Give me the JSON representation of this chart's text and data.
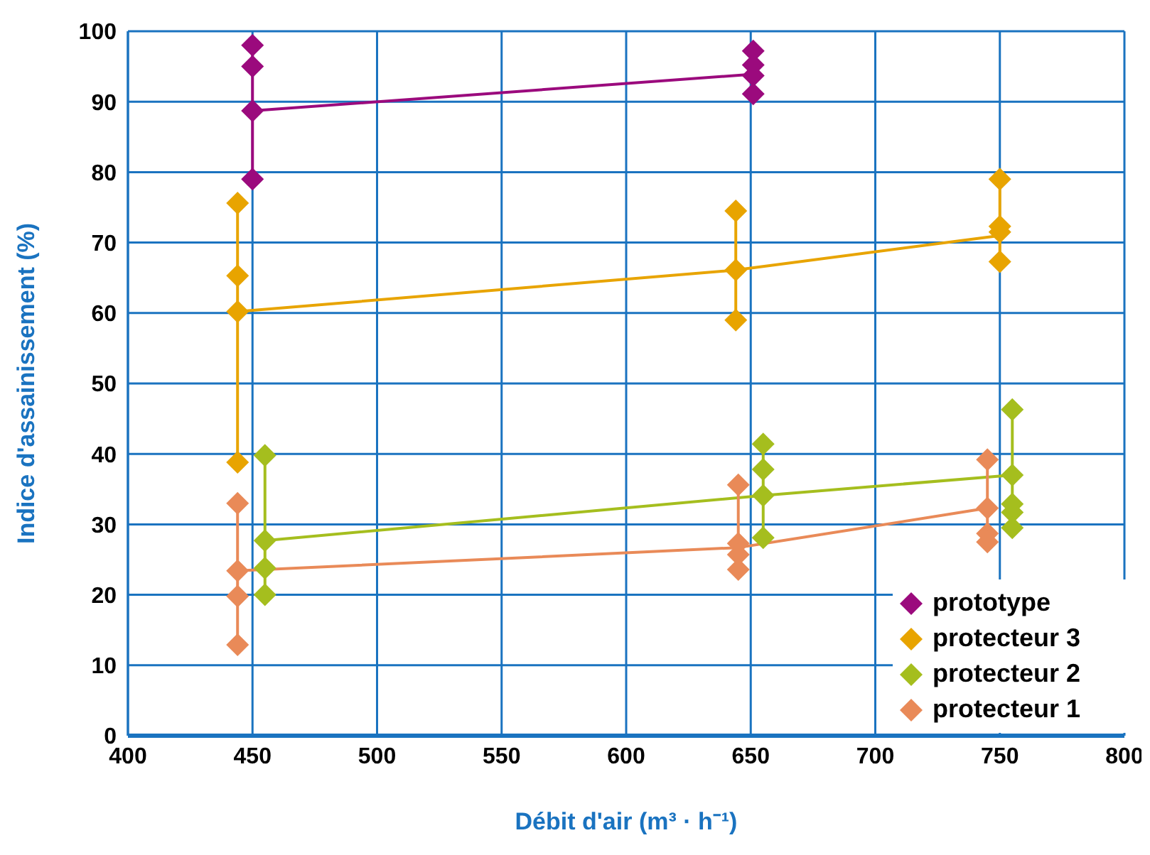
{
  "chart_data": {
    "type": "scatter",
    "xlabel": "Débit d'air (m³ · h⁻¹)",
    "ylabel": "Indice d'assainissement (%)",
    "xlim": [
      400,
      800
    ],
    "xticks": [
      400,
      450,
      500,
      550,
      600,
      650,
      700,
      750,
      800
    ],
    "ylim": [
      0,
      100
    ],
    "yticks": [
      0,
      10,
      20,
      30,
      40,
      50,
      60,
      70,
      80,
      90,
      100
    ],
    "grid": true,
    "legend": "bottom right",
    "marker": "diamond",
    "series": [
      {
        "name": "prototype",
        "color": "#9b0a7d",
        "x": [
          450,
          450,
          450,
          450,
          651,
          651,
          651,
          651
        ],
        "values": [
          98,
          95,
          88.7,
          79,
          97.2,
          95.2,
          93.7,
          91.1
        ]
      },
      {
        "name": "protecteur 3",
        "color": "#e8a400",
        "x": [
          444,
          444,
          444,
          444,
          644,
          644,
          644,
          750,
          750,
          750,
          750
        ],
        "values": [
          75.6,
          65.3,
          60.2,
          38.8,
          74.5,
          66.1,
          59,
          79,
          72.3,
          71.5,
          67.3
        ]
      },
      {
        "name": "protecteur 2",
        "color": "#a5be1e",
        "x": [
          455,
          455,
          455,
          455,
          655,
          655,
          655,
          655,
          755,
          755,
          755,
          755,
          755
        ],
        "values": [
          39.8,
          27.7,
          23.8,
          20,
          41.4,
          37.8,
          34.1,
          28.1,
          46.3,
          37,
          32.9,
          31.7,
          29.5
        ]
      },
      {
        "name": "protecteur 1",
        "color": "#e98a58",
        "x": [
          444,
          444,
          444,
          444,
          645,
          645,
          645,
          645,
          745,
          745,
          745,
          745
        ],
        "values": [
          33,
          23.4,
          19.8,
          12.9,
          35.6,
          27.3,
          25.7,
          23.6,
          39.2,
          32.3,
          28.7,
          27.5
        ]
      },
      {
        "type": "line",
        "color": "#9b0a7d",
        "marker": "none",
        "x": [
          450,
          651
        ],
        "values": [
          88.7,
          93.9
        ]
      },
      {
        "type": "line",
        "color": "#e8a400",
        "marker": "none",
        "x": [
          444,
          644,
          750
        ],
        "values": [
          60.2,
          66.1,
          71
        ]
      },
      {
        "type": "line",
        "color": "#a5be1e",
        "marker": "none",
        "x": [
          455,
          655,
          755
        ],
        "values": [
          27.7,
          34.1,
          37
        ]
      },
      {
        "type": "line",
        "color": "#e98a58",
        "marker": "none",
        "x": [
          444,
          645,
          745
        ],
        "values": [
          23.4,
          26.7,
          32.3
        ]
      },
      {
        "type": "line",
        "color": "#9b0a7d",
        "marker": "none",
        "x": [
          450,
          450
        ],
        "values": [
          79,
          98
        ]
      },
      {
        "type": "line",
        "color": "#e8a400",
        "marker": "none",
        "x": [
          444,
          444
        ],
        "values": [
          38.8,
          75.6
        ]
      },
      {
        "type": "line",
        "color": "#e8a400",
        "marker": "none",
        "x": [
          644,
          644
        ],
        "values": [
          59,
          74.5
        ]
      },
      {
        "type": "line",
        "color": "#e8a400",
        "marker": "none",
        "x": [
          750,
          750
        ],
        "values": [
          67.3,
          79
        ]
      },
      {
        "type": "line",
        "color": "#a5be1e",
        "marker": "none",
        "x": [
          455,
          455
        ],
        "values": [
          20,
          39.8
        ]
      },
      {
        "type": "line",
        "color": "#a5be1e",
        "marker": "none",
        "x": [
          655,
          655
        ],
        "values": [
          28.1,
          41.4
        ]
      },
      {
        "type": "line",
        "color": "#a5be1e",
        "marker": "none",
        "x": [
          755,
          755
        ],
        "values": [
          29.5,
          46.3
        ]
      },
      {
        "type": "line",
        "color": "#e98a58",
        "marker": "none",
        "x": [
          444,
          444
        ],
        "values": [
          12.9,
          33
        ]
      },
      {
        "type": "line",
        "color": "#e98a58",
        "marker": "none",
        "x": [
          645,
          645
        ],
        "values": [
          23.6,
          35.6
        ]
      },
      {
        "type": "line",
        "color": "#e98a58",
        "marker": "none",
        "x": [
          745,
          745
        ],
        "values": [
          27.5,
          39.2
        ]
      }
    ]
  }
}
